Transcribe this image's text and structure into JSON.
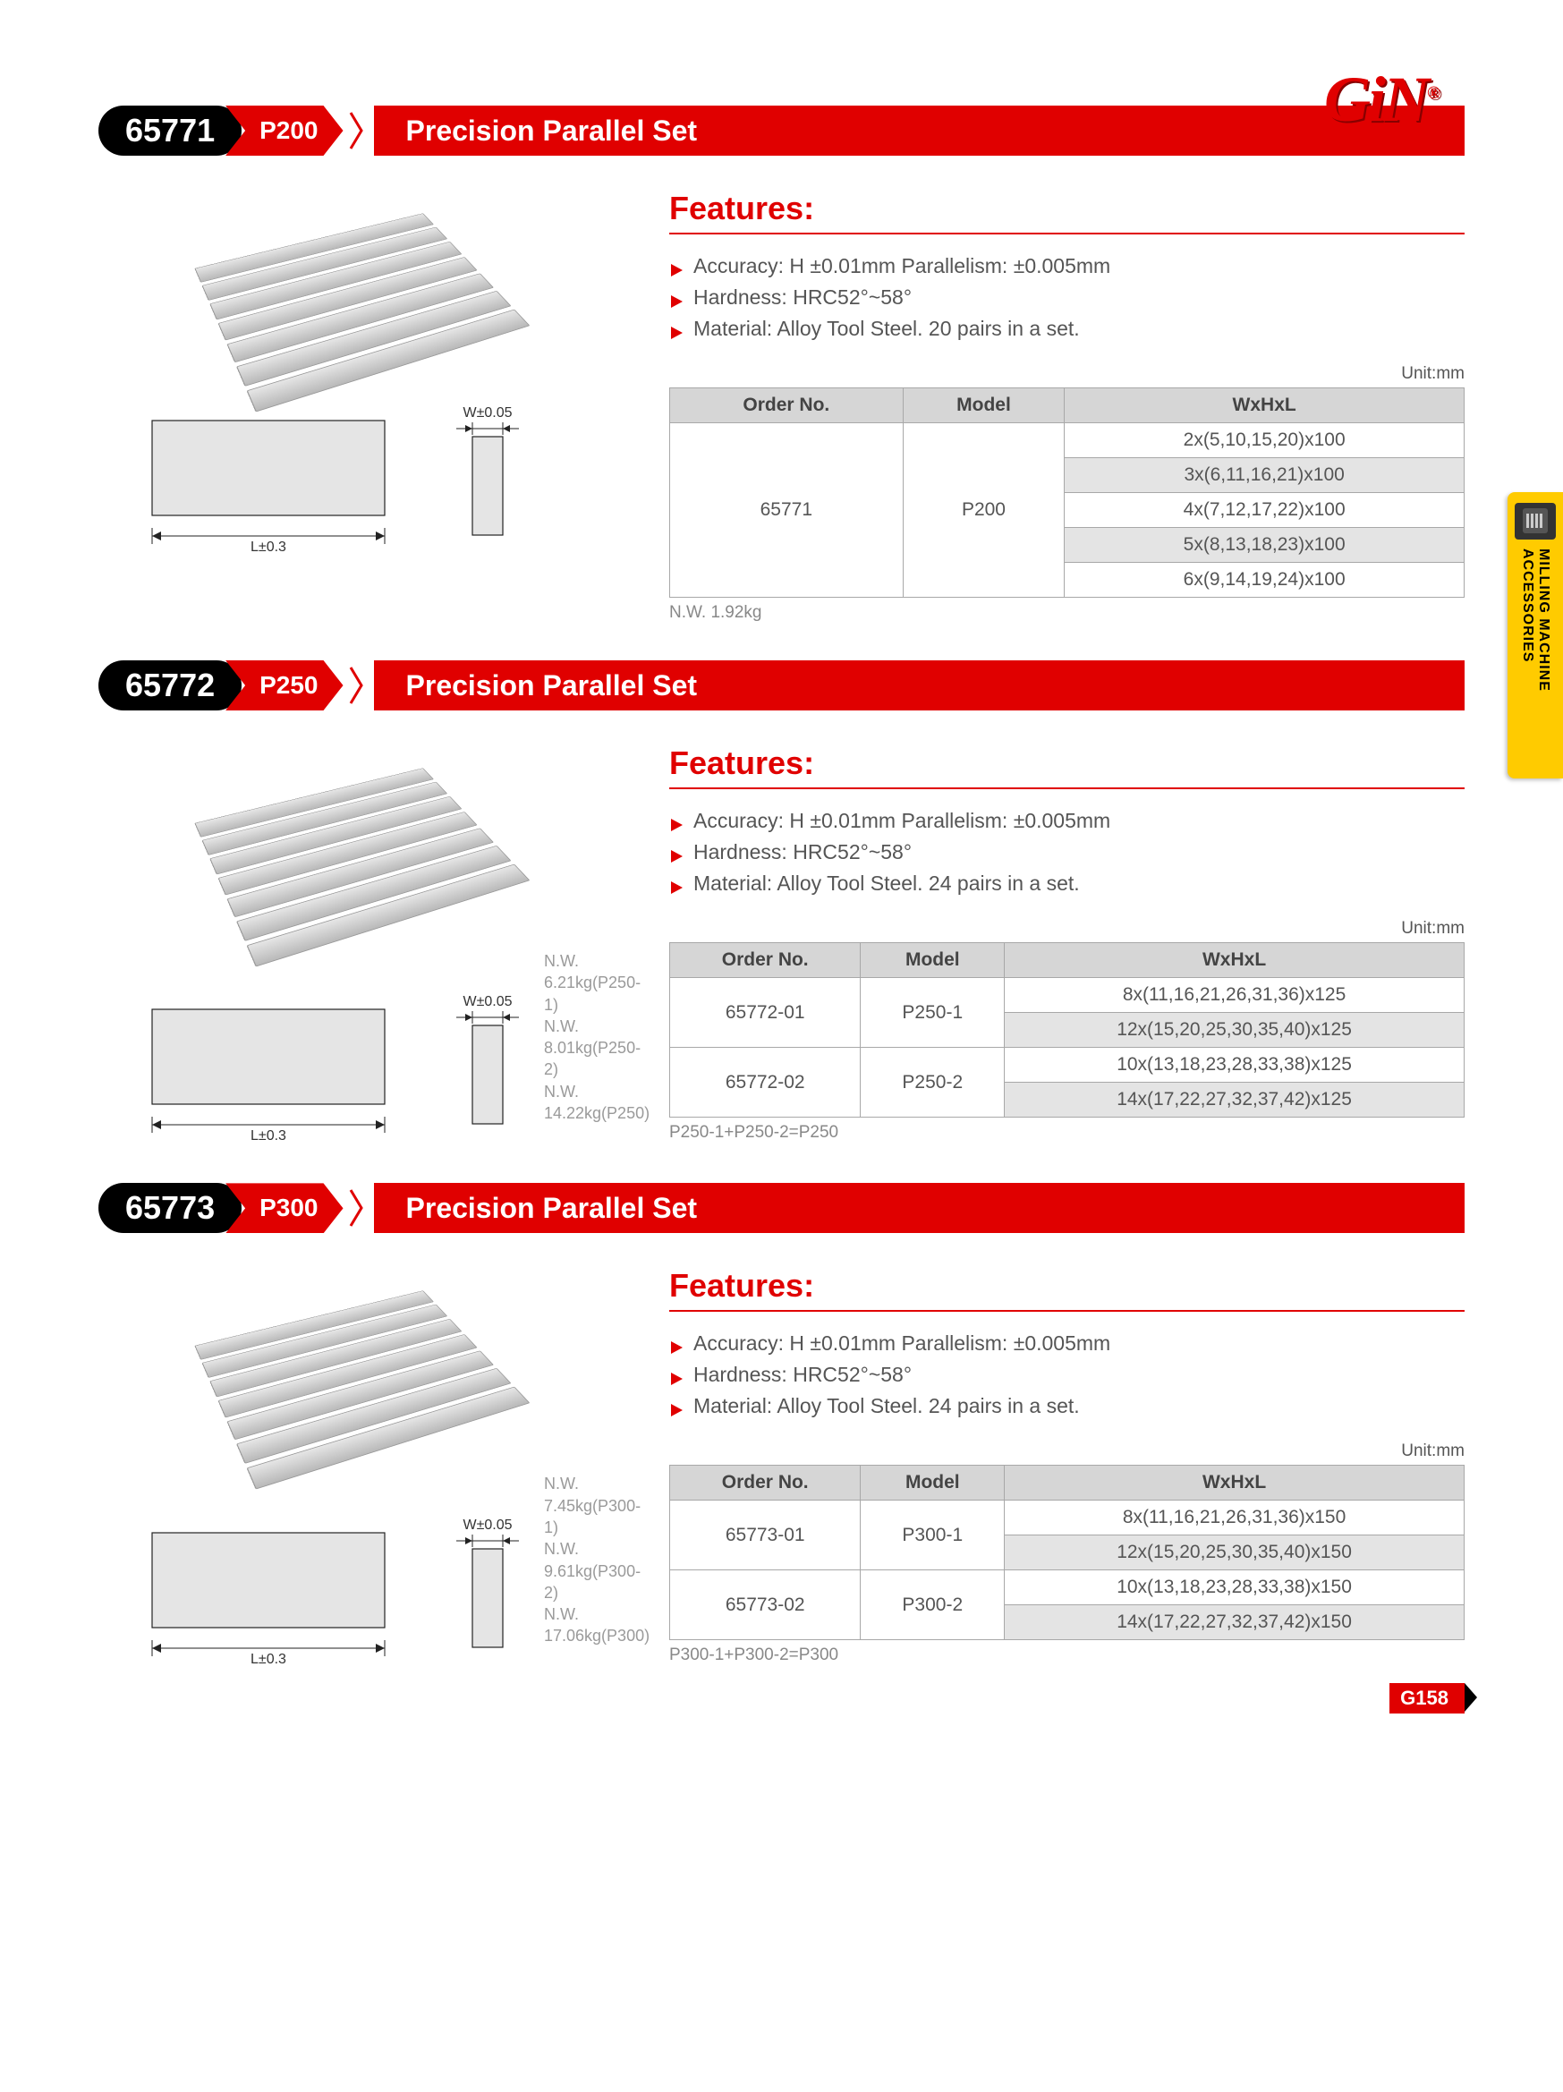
{
  "brand": "GiN",
  "brand_color": "#e00000",
  "side_tab": {
    "label": "MILLING MACHINE\nACCESSORIES",
    "bg": "#ffcb00"
  },
  "page_number": "G158",
  "unit_label": "Unit:mm",
  "features_heading": "Features:",
  "diagram_labels": {
    "w": "W±0.05",
    "l": "L±0.3"
  },
  "sections": [
    {
      "order": "65771",
      "model_chip": "P200",
      "title": "Precision Parallel Set",
      "features": [
        "Accuracy: H ±0.01mm Parallelism: ±0.005mm",
        "Hardness: HRC52°~58°",
        "Material: Alloy Tool Steel. 20 pairs in a set."
      ],
      "nw_lines": [],
      "nw_single": "N.W. 1.92kg",
      "table": {
        "columns": [
          "Order No.",
          "Model",
          "WxHxL"
        ],
        "rows": [
          {
            "order": "65771",
            "model": "P200",
            "rowspan": 5,
            "dim": "2x(5,10,15,20)x100",
            "alt": false
          },
          {
            "dim": "3x(6,11,16,21)x100",
            "alt": true
          },
          {
            "dim": "4x(7,12,17,22)x100",
            "alt": false
          },
          {
            "dim": "5x(8,13,18,23)x100",
            "alt": true
          },
          {
            "dim": "6x(9,14,19,24)x100",
            "alt": false
          }
        ],
        "note": ""
      }
    },
    {
      "order": "65772",
      "model_chip": "P250",
      "title": "Precision Parallel Set",
      "features": [
        "Accuracy: H ±0.01mm Parallelism: ±0.005mm",
        "Hardness: HRC52°~58°",
        "Material: Alloy Tool Steel. 24 pairs in a set."
      ],
      "nw_lines": [
        "N.W. 6.21kg(P250-1)",
        "N.W. 8.01kg(P250-2)",
        "N.W. 14.22kg(P250)"
      ],
      "nw_single": "",
      "table": {
        "columns": [
          "Order No.",
          "Model",
          "WxHxL"
        ],
        "rows": [
          {
            "order": "65772-01",
            "model": "P250-1",
            "rowspan": 2,
            "dim": "8x(11,16,21,26,31,36)x125",
            "alt": false
          },
          {
            "dim": "12x(15,20,25,30,35,40)x125",
            "alt": true
          },
          {
            "order": "65772-02",
            "model": "P250-2",
            "rowspan": 2,
            "dim": "10x(13,18,23,28,33,38)x125",
            "alt": false
          },
          {
            "dim": "14x(17,22,27,32,37,42)x125",
            "alt": true
          }
        ],
        "note": "P250-1+P250-2=P250"
      }
    },
    {
      "order": "65773",
      "model_chip": "P300",
      "title": "Precision Parallel Set",
      "features": [
        "Accuracy: H ±0.01mm Parallelism: ±0.005mm",
        "Hardness: HRC52°~58°",
        "Material: Alloy Tool Steel. 24 pairs in a set."
      ],
      "nw_lines": [
        "N.W. 7.45kg(P300-1)",
        "N.W. 9.61kg(P300-2)",
        "N.W. 17.06kg(P300)"
      ],
      "nw_single": "",
      "table": {
        "columns": [
          "Order No.",
          "Model",
          "WxHxL"
        ],
        "rows": [
          {
            "order": "65773-01",
            "model": "P300-1",
            "rowspan": 2,
            "dim": "8x(11,16,21,26,31,36)x150",
            "alt": false
          },
          {
            "dim": "12x(15,20,25,30,35,40)x150",
            "alt": true
          },
          {
            "order": "65773-02",
            "model": "P300-2",
            "rowspan": 2,
            "dim": "10x(13,18,23,28,33,38)x150",
            "alt": false
          },
          {
            "dim": "14x(17,22,27,32,37,42)x150",
            "alt": true
          }
        ],
        "note": "P300-1+P300-2=P300"
      }
    }
  ]
}
